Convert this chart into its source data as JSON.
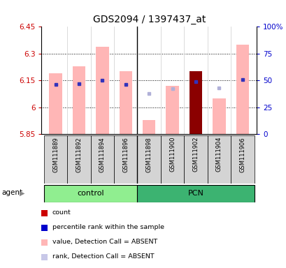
{
  "title": "GDS2094 / 1397437_at",
  "samples": [
    "GSM111889",
    "GSM111892",
    "GSM111894",
    "GSM111896",
    "GSM111898",
    "GSM111900",
    "GSM111902",
    "GSM111904",
    "GSM111906"
  ],
  "groups": [
    {
      "name": "control",
      "indices": [
        0,
        1,
        2,
        3
      ]
    },
    {
      "name": "PCN",
      "indices": [
        4,
        5,
        6,
        7,
        8
      ]
    }
  ],
  "ylim_left": [
    5.85,
    6.45
  ],
  "ylim_right": [
    0,
    100
  ],
  "yticks_left": [
    5.85,
    6.0,
    6.15,
    6.3,
    6.45
  ],
  "yticks_right": [
    0,
    25,
    50,
    75,
    100
  ],
  "ytick_labels_left": [
    "5.85",
    "6",
    "6.15",
    "6.3",
    "6.45"
  ],
  "ytick_labels_right": [
    "0",
    "25",
    "50",
    "75",
    "100%"
  ],
  "bar_values": [
    6.19,
    6.23,
    6.34,
    6.2,
    5.93,
    6.12,
    6.2,
    6.05,
    6.35
  ],
  "bar_colors": [
    "#ffb6b6",
    "#ffb6b6",
    "#ffb6b6",
    "#ffb6b6",
    "#ffb6b6",
    "#ffb6b6",
    "#8b0000",
    "#ffb6b6",
    "#ffb6b6"
  ],
  "rank_values_pct": [
    46,
    47,
    50,
    46,
    38,
    42,
    49,
    43,
    51
  ],
  "rank_marker_type": [
    "blue_sq",
    "blue_sq",
    "blue_sq",
    "blue_sq",
    "lavender_sq",
    "lavender_sq",
    "blue_sq",
    "lavender_sq",
    "blue_sq"
  ],
  "bar_base": 5.85,
  "control_group_color": "#90ee90",
  "pcn_group_color": "#3cb371",
  "legend_items": [
    {
      "color": "#cc0000",
      "label": "count"
    },
    {
      "color": "#0000cc",
      "label": "percentile rank within the sample"
    },
    {
      "color": "#ffb6b6",
      "label": "value, Detection Call = ABSENT"
    },
    {
      "color": "#c8c8e8",
      "label": "rank, Detection Call = ABSENT"
    }
  ],
  "agent_label": "agent",
  "left_tick_color": "#cc0000",
  "right_tick_color": "#0000cc",
  "grid_yticks": [
    6.0,
    6.15,
    6.3
  ]
}
